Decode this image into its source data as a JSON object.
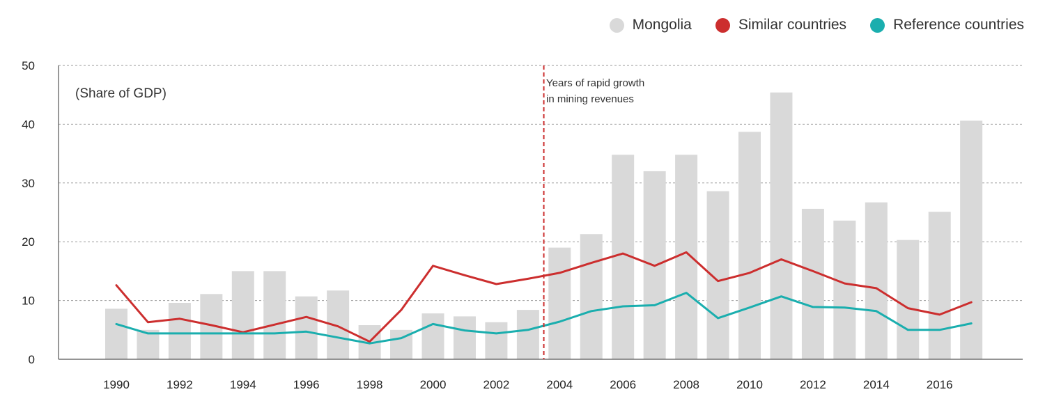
{
  "chart_data": {
    "type": "bar",
    "unit_label": "(Share of GDP)",
    "annotation_lines": [
      "Years of rapid growth",
      "in mining revenues"
    ],
    "annotation_x": 2003.5,
    "ylim": [
      0,
      50
    ],
    "yticks": [
      0,
      10,
      20,
      30,
      40,
      50
    ],
    "xticks": [
      1990,
      1992,
      1994,
      1996,
      1998,
      2000,
      2002,
      2004,
      2006,
      2008,
      2010,
      2012,
      2014,
      2016
    ],
    "grid": true,
    "legend_position": "top-right",
    "years": [
      1990,
      1991,
      1992,
      1993,
      1994,
      1995,
      1996,
      1997,
      1998,
      1999,
      2000,
      2001,
      2002,
      2003,
      2004,
      2005,
      2006,
      2007,
      2008,
      2009,
      2010,
      2011,
      2012,
      2013,
      2014,
      2015,
      2016,
      2017
    ],
    "series": [
      {
        "name": "Mongolia",
        "kind": "bar",
        "color": "#d9d9d9",
        "values": [
          8.6,
          5.0,
          9.6,
          11.1,
          15.0,
          15.0,
          10.7,
          11.7,
          5.8,
          5.0,
          7.8,
          7.3,
          6.3,
          8.4,
          19.0,
          21.3,
          34.8,
          32.0,
          34.8,
          28.6,
          38.7,
          45.4,
          25.6,
          23.6,
          26.7,
          20.3,
          25.1,
          40.6
        ]
      },
      {
        "name": "Similar countries",
        "kind": "line",
        "color": "#cc2e2e",
        "values": [
          12.6,
          6.3,
          6.9,
          5.8,
          4.6,
          5.9,
          7.2,
          5.6,
          3.0,
          8.4,
          15.9,
          14.3,
          12.8,
          13.7,
          14.7,
          16.4,
          18.0,
          15.9,
          18.2,
          13.3,
          14.7,
          17.0,
          15.0,
          12.9,
          12.1,
          8.7,
          7.6,
          9.7
        ]
      },
      {
        "name": "Reference countries",
        "kind": "line",
        "color": "#1aaeae",
        "values": [
          6.0,
          4.4,
          4.4,
          4.4,
          4.4,
          4.4,
          4.7,
          3.7,
          2.7,
          3.6,
          6.0,
          4.9,
          4.4,
          5.0,
          6.4,
          8.2,
          9.0,
          9.2,
          11.3,
          7.0,
          8.8,
          10.7,
          8.9,
          8.8,
          8.2,
          5.0,
          5.0,
          6.1
        ]
      }
    ]
  }
}
